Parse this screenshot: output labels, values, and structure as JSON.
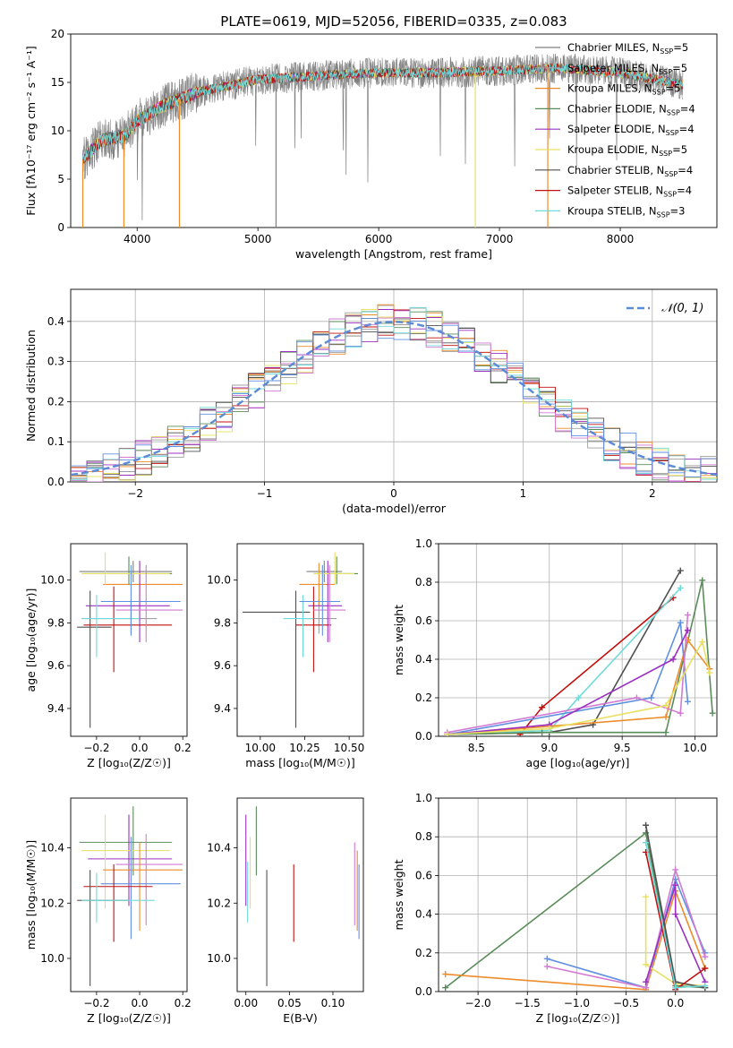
{
  "figure_title": "PLATE=0619, MJD=52056, FIBERID=0335, z=0.083",
  "colors": [
    "#7f7f7f",
    "#a0a0a0",
    "#ee8c2a",
    "#5a8c5a",
    "#9b30c0",
    "#e8e060",
    "#505050",
    "#c01010",
    "#70dada",
    "#d27ad2",
    "#6090e0",
    "#b0b0b0"
  ],
  "legend_series": [
    {
      "text": "Chabrier MILES, N",
      "sub": "SSP",
      "tail": "=5",
      "color": "#7f7f7f"
    },
    {
      "text": "Salpeter MILES, N",
      "sub": "SSP",
      "tail": "=5",
      "color": "#a0a0a0"
    },
    {
      "text": "Kroupa MILES, N",
      "sub": "SSP",
      "tail": "=5",
      "color": "#ee8c2a"
    },
    {
      "text": "Chabrier ELODIE, N",
      "sub": "SSP",
      "tail": "=4",
      "color": "#5a8c5a"
    },
    {
      "text": "Salpeter ELODIE, N",
      "sub": "SSP",
      "tail": "=4",
      "color": "#9b30c0"
    },
    {
      "text": "Kroupa ELODIE, N",
      "sub": "SSP",
      "tail": "=5",
      "color": "#e8e060"
    },
    {
      "text": "Chabrier STELIB, N",
      "sub": "SSP",
      "tail": "=4",
      "color": "#505050"
    },
    {
      "text": "Salpeter STELIB, N",
      "sub": "SSP",
      "tail": "=4",
      "color": "#c01010"
    },
    {
      "text": "Kroupa STELIB, N",
      "sub": "SSP",
      "tail": "=3",
      "color": "#70dada"
    }
  ],
  "chart_data": [
    {
      "id": "spectrum",
      "type": "line",
      "xlabel": "wavelength [Angstrom, rest frame]",
      "ylabel": "Flux [fλ10⁻¹⁷ erg cm⁻² s⁻¹ A⁻¹]",
      "xlim": [
        3450,
        8800
      ],
      "ylim": [
        0,
        20
      ],
      "xticks": [
        4000,
        5000,
        6000,
        7000,
        8000
      ],
      "yticks": [
        0,
        5,
        10,
        15,
        20
      ],
      "x_range": [
        3550,
        8520
      ],
      "continuum": [
        [
          3550,
          7.0
        ],
        [
          3700,
          9.0
        ],
        [
          3900,
          9.5
        ],
        [
          4000,
          11.0
        ],
        [
          4200,
          12.5
        ],
        [
          4500,
          14.0
        ],
        [
          5000,
          15.3
        ],
        [
          5500,
          15.7
        ],
        [
          6000,
          16.0
        ],
        [
          6500,
          16.0
        ],
        [
          7000,
          16.2
        ],
        [
          7500,
          16.5
        ],
        [
          8000,
          16.0
        ],
        [
          8500,
          14.8
        ]
      ]
    },
    {
      "id": "residuals",
      "type": "line",
      "xlabel": "(data-model)/error",
      "ylabel": "Normed distribution",
      "xlim": [
        -2.5,
        2.5
      ],
      "ylim": [
        0,
        0.48
      ],
      "xticks": [
        -2,
        -1,
        0,
        1,
        2
      ],
      "yticks": [
        0.0,
        0.1,
        0.2,
        0.3,
        0.4
      ],
      "legend": "𝒩(0, 1)",
      "grid": true
    },
    {
      "id": "age-vs-Z",
      "type": "scatter",
      "xlabel": "Z [log₁₀(Z/Z☉)]",
      "ylabel": "age  [log₁₀(age/yr)]",
      "xlim": [
        -0.32,
        0.22
      ],
      "ylim": [
        9.27,
        10.17
      ],
      "xticks": [
        -0.2,
        0.0,
        0.2
      ],
      "yticks": [
        9.4,
        9.6,
        9.8,
        10.0
      ],
      "points": [
        {
          "x": -0.03,
          "y": 10.04,
          "xe": [
            -0.28,
            0.15
          ],
          "ye": [
            9.99,
            10.09
          ],
          "c": 0
        },
        {
          "x": -0.04,
          "y": 9.82,
          "xe": [
            -0.27,
            0.08
          ],
          "ye": [
            9.75,
            9.91
          ],
          "c": 1
        },
        {
          "x": 0.0,
          "y": 9.98,
          "xe": [
            -0.17,
            0.2
          ],
          "ye": [
            9.88,
            10.08
          ],
          "c": 2
        },
        {
          "x": -0.05,
          "y": 10.03,
          "xe": [
            -0.26,
            0.15
          ],
          "ye": [
            9.98,
            10.11
          ],
          "c": 3
        },
        {
          "x": 0.0,
          "y": 9.88,
          "xe": [
            -0.25,
            0.14
          ],
          "ye": [
            9.71,
            10.09
          ],
          "c": 4
        },
        {
          "x": -0.16,
          "y": 10.03,
          "xe": [
            -0.27,
            0.14
          ],
          "ye": [
            9.98,
            10.13
          ],
          "c": 5
        },
        {
          "x": -0.23,
          "y": 9.78,
          "xe": [
            -0.29,
            -0.13
          ],
          "ye": [
            9.31,
            9.95
          ],
          "c": 6
        },
        {
          "x": -0.12,
          "y": 9.79,
          "xe": [
            -0.26,
            0.15
          ],
          "ye": [
            9.57,
            9.97
          ],
          "c": 7
        },
        {
          "x": -0.2,
          "y": 9.82,
          "xe": [
            -0.27,
            0.0
          ],
          "ye": [
            9.64,
            9.93
          ],
          "c": 8
        },
        {
          "x": 0.03,
          "y": 9.86,
          "xe": [
            -0.11,
            0.2
          ],
          "ye": [
            9.71,
            10.07
          ],
          "c": 9
        },
        {
          "x": -0.04,
          "y": 9.9,
          "xe": [
            -0.18,
            0.19
          ],
          "ye": [
            9.74,
            10.07
          ],
          "c": 10
        }
      ]
    },
    {
      "id": "age-vs-mass",
      "type": "scatter",
      "xlabel": "mass [log₁₀(M/M☉)]",
      "ylabel": "",
      "xlim": [
        9.87,
        10.58
      ],
      "ylim": [
        9.27,
        10.17
      ],
      "xticks": [
        10.0,
        10.25,
        10.5
      ],
      "tick_labels": [
        "10.00",
        "10.25",
        "10.50"
      ],
      "yticks": [
        9.4,
        9.6,
        9.8,
        10.0
      ],
      "points": [
        {
          "x": 10.36,
          "y": 10.04,
          "xe": [
            10.26,
            10.46
          ],
          "ye": [
            9.99,
            10.09
          ],
          "c": 0
        },
        {
          "x": 10.33,
          "y": 9.82,
          "xe": [
            10.23,
            10.43
          ],
          "ye": [
            9.75,
            9.91
          ],
          "c": 1
        },
        {
          "x": 10.33,
          "y": 9.98,
          "xe": [
            10.22,
            10.42
          ],
          "ye": [
            9.88,
            10.08
          ],
          "c": 2
        },
        {
          "x": 10.43,
          "y": 10.03,
          "xe": [
            10.3,
            10.55
          ],
          "ye": [
            9.98,
            10.11
          ],
          "c": 3
        },
        {
          "x": 10.38,
          "y": 9.88,
          "xe": [
            10.27,
            10.46
          ],
          "ye": [
            9.71,
            10.09
          ],
          "c": 4
        },
        {
          "x": 10.42,
          "y": 10.03,
          "xe": [
            10.3,
            10.53
          ],
          "ye": [
            9.98,
            10.13
          ],
          "c": 5
        },
        {
          "x": 10.2,
          "y": 9.85,
          "xe": [
            9.9,
            10.28
          ],
          "ye": [
            9.31,
            9.95
          ],
          "c": 6
        },
        {
          "x": 10.3,
          "y": 9.79,
          "xe": [
            10.2,
            10.4
          ],
          "ye": [
            9.57,
            9.97
          ],
          "c": 7
        },
        {
          "x": 10.24,
          "y": 9.82,
          "xe": [
            10.13,
            10.3
          ],
          "ye": [
            9.64,
            9.93
          ],
          "c": 8
        },
        {
          "x": 10.39,
          "y": 9.86,
          "xe": [
            10.3,
            10.48
          ],
          "ye": [
            9.71,
            10.07
          ],
          "c": 9
        },
        {
          "x": 10.35,
          "y": 9.9,
          "xe": [
            10.22,
            10.45
          ],
          "ye": [
            9.74,
            10.07
          ],
          "c": 10
        }
      ]
    },
    {
      "id": "mass-weight-vs-age",
      "type": "line",
      "xlabel": "age  [log₁₀(age/yr)]",
      "ylabel": "mass weight",
      "xlim": [
        8.24,
        10.15
      ],
      "ylim": [
        0,
        1
      ],
      "xticks": [
        8.5,
        9.0,
        9.5,
        10.0
      ],
      "yticks": [
        0.0,
        0.2,
        0.4,
        0.6,
        0.8,
        1.0
      ],
      "grid": true,
      "series": [
        {
          "c": 6,
          "pts": [
            [
              8.3,
              0.01
            ],
            [
              9.0,
              0.02
            ],
            [
              9.3,
              0.06
            ],
            [
              9.9,
              0.86
            ]
          ]
        },
        {
          "c": 7,
          "pts": [
            [
              8.8,
              0.01
            ],
            [
              8.95,
              0.15
            ],
            [
              9.85,
              0.72
            ]
          ]
        },
        {
          "c": 8,
          "pts": [
            [
              8.3,
              0.01
            ],
            [
              9.0,
              0.03
            ],
            [
              9.2,
              0.2
            ],
            [
              9.9,
              0.77
            ]
          ]
        },
        {
          "c": 3,
          "pts": [
            [
              8.3,
              0.01
            ],
            [
              8.95,
              0.02
            ],
            [
              9.8,
              0.02
            ],
            [
              10.05,
              0.81
            ],
            [
              10.12,
              0.12
            ]
          ]
        },
        {
          "c": 2,
          "pts": [
            [
              8.3,
              0.01
            ],
            [
              9.8,
              0.1
            ],
            [
              9.95,
              0.5
            ],
            [
              10.1,
              0.35
            ]
          ]
        },
        {
          "c": 10,
          "pts": [
            [
              8.3,
              0.01
            ],
            [
              9.7,
              0.2
            ],
            [
              9.9,
              0.59
            ],
            [
              9.95,
              0.18
            ]
          ]
        },
        {
          "c": 9,
          "pts": [
            [
              8.3,
              0.02
            ],
            [
              9.6,
              0.2
            ],
            [
              9.9,
              0.12
            ],
            [
              9.95,
              0.63
            ]
          ]
        },
        {
          "c": 4,
          "pts": [
            [
              8.3,
              0.01
            ],
            [
              9.0,
              0.06
            ],
            [
              9.85,
              0.4
            ],
            [
              9.95,
              0.55
            ]
          ]
        },
        {
          "c": 5,
          "pts": [
            [
              8.3,
              0.01
            ],
            [
              9.0,
              0.04
            ],
            [
              9.8,
              0.16
            ],
            [
              10.05,
              0.49
            ],
            [
              10.1,
              0.33
            ]
          ]
        }
      ]
    },
    {
      "id": "mass-vs-Z",
      "type": "scatter",
      "xlabel": "Z [log₁₀(Z/Z☉)]",
      "ylabel": "mass [log₁₀(M/M☉)]",
      "xlim": [
        -0.32,
        0.22
      ],
      "ylim": [
        9.88,
        10.58
      ],
      "xticks": [
        -0.2,
        0.0,
        0.2
      ],
      "yticks": [
        10.0,
        10.2,
        10.4
      ],
      "points": [
        {
          "x": -0.03,
          "y": 10.42,
          "xe": [
            -0.28,
            0.15
          ],
          "ye": [
            10.3,
            10.55
          ],
          "c": 3
        },
        {
          "x": -0.05,
          "y": 10.36,
          "xe": [
            -0.24,
            0.15
          ],
          "ye": [
            10.19,
            10.52
          ],
          "c": 4
        },
        {
          "x": -0.16,
          "y": 10.39,
          "xe": [
            -0.27,
            0.14
          ],
          "ye": [
            10.18,
            10.52
          ],
          "c": 5
        },
        {
          "x": 0.03,
          "y": 10.34,
          "xe": [
            -0.11,
            0.2
          ],
          "ye": [
            10.12,
            10.45
          ],
          "c": 9
        },
        {
          "x": 0.0,
          "y": 10.32,
          "xe": [
            -0.17,
            0.2
          ],
          "ye": [
            10.1,
            10.42
          ],
          "c": 2
        },
        {
          "x": -0.04,
          "y": 10.27,
          "xe": [
            -0.18,
            0.19
          ],
          "ye": [
            10.07,
            10.44
          ],
          "c": 10
        },
        {
          "x": -0.12,
          "y": 10.26,
          "xe": [
            -0.26,
            0.06
          ],
          "ye": [
            10.06,
            10.34
          ],
          "c": 7
        },
        {
          "x": -0.23,
          "y": 10.21,
          "xe": [
            -0.29,
            -0.05
          ],
          "ye": [
            9.9,
            10.32
          ],
          "c": 6
        },
        {
          "x": -0.2,
          "y": 10.21,
          "xe": [
            -0.27,
            0.07
          ],
          "ye": [
            10.13,
            10.31
          ],
          "c": 8
        }
      ]
    },
    {
      "id": "mass-vs-ebv",
      "type": "scatter",
      "xlabel": "E(B-V)",
      "ylabel": "",
      "xlim": [
        -0.01,
        0.135
      ],
      "ylim": [
        9.88,
        10.58
      ],
      "xticks": [
        0.0,
        0.05,
        0.1
      ],
      "tick_labels": [
        "0.00",
        "0.05",
        "0.10"
      ],
      "yticks": [
        10.0,
        10.2,
        10.4
      ],
      "points": [
        {
          "x": 0.0,
          "y": 10.36,
          "ye": [
            10.19,
            10.52
          ],
          "c": 4
        },
        {
          "x": 0.005,
          "y": 10.3,
          "ye": [
            10.18,
            10.44
          ],
          "c": 5
        },
        {
          "x": 0.002,
          "y": 10.25,
          "ye": [
            10.13,
            10.35
          ],
          "c": 8
        },
        {
          "x": 0.012,
          "y": 10.42,
          "ye": [
            10.3,
            10.55
          ],
          "c": 3
        },
        {
          "x": 0.024,
          "y": 10.1,
          "ye": [
            9.9,
            10.32
          ],
          "c": 6
        },
        {
          "x": 0.055,
          "y": 10.2,
          "ye": [
            10.06,
            10.34
          ],
          "c": 7
        },
        {
          "x": 0.125,
          "y": 10.3,
          "ye": [
            10.12,
            10.42
          ],
          "c": 9
        },
        {
          "x": 0.128,
          "y": 10.25,
          "ye": [
            10.1,
            10.39
          ],
          "c": 2
        },
        {
          "x": 0.13,
          "y": 10.2,
          "ye": [
            10.07,
            10.34
          ],
          "c": 10
        }
      ]
    },
    {
      "id": "mass-weight-vs-Z",
      "type": "line",
      "xlabel": "Z [log₁₀(Z/Z☉)]",
      "ylabel": "mass weight",
      "xlim": [
        -2.4,
        0.42
      ],
      "ylim": [
        0,
        1
      ],
      "xticks": [
        -2.0,
        -1.5,
        -1.0,
        -0.5,
        0.0
      ],
      "tick_labels": [
        "−2.0",
        "−1.5",
        "−1.0",
        "−0.5",
        "0.0"
      ],
      "yticks": [
        0.0,
        0.2,
        0.4,
        0.6,
        0.8,
        1.0
      ],
      "grid": true,
      "series": [
        {
          "c": 3,
          "pts": [
            [
              -2.33,
              0.02
            ],
            [
              -0.3,
              0.82
            ],
            [
              0.0,
              0.03
            ],
            [
              0.3,
              0.02
            ]
          ]
        },
        {
          "c": 2,
          "pts": [
            [
              -2.33,
              0.09
            ],
            [
              -0.3,
              0.01
            ],
            [
              0.0,
              0.52
            ],
            [
              0.3,
              0.12
            ]
          ]
        },
        {
          "c": 10,
          "pts": [
            [
              -1.3,
              0.17
            ],
            [
              -0.3,
              0.02
            ],
            [
              0.0,
              0.58
            ],
            [
              0.3,
              0.2
            ]
          ]
        },
        {
          "c": 9,
          "pts": [
            [
              -1.3,
              0.13
            ],
            [
              -0.3,
              0.02
            ],
            [
              0.0,
              0.63
            ],
            [
              0.3,
              0.18
            ]
          ]
        },
        {
          "c": 5,
          "pts": [
            [
              -0.3,
              0.49
            ],
            [
              -0.3,
              0.14
            ],
            [
              0.0,
              0.04
            ],
            [
              0.3,
              0.03
            ]
          ]
        },
        {
          "c": 4,
          "pts": [
            [
              -0.3,
              0.05
            ],
            [
              0.0,
              0.55
            ],
            [
              0.0,
              0.4
            ],
            [
              0.3,
              0.05
            ]
          ]
        },
        {
          "c": 6,
          "pts": [
            [
              -0.3,
              0.86
            ],
            [
              0.0,
              0.05
            ],
            [
              0.3,
              0.02
            ]
          ]
        },
        {
          "c": 7,
          "pts": [
            [
              -0.3,
              0.72
            ],
            [
              0.0,
              0.01
            ],
            [
              0.3,
              0.12
            ]
          ]
        },
        {
          "c": 8,
          "pts": [
            [
              -0.3,
              0.77
            ],
            [
              0.0,
              0.02
            ],
            [
              0.3,
              0.03
            ]
          ]
        }
      ]
    }
  ]
}
